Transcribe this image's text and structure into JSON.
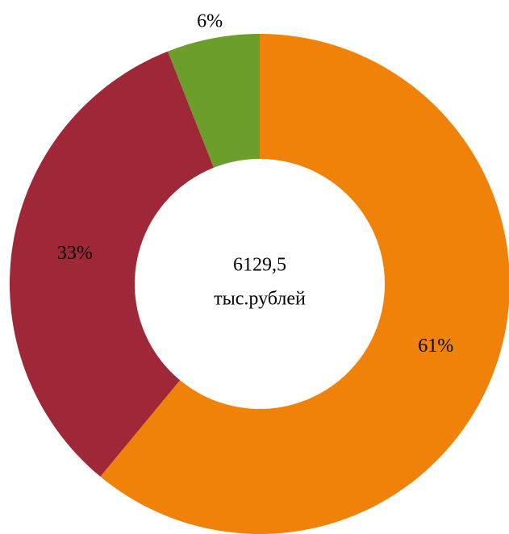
{
  "chart_data": {
    "type": "donut",
    "values": [
      61,
      33,
      6
    ],
    "value_labels": [
      "61%",
      "33%",
      "6%"
    ],
    "colors": [
      "#f0820a",
      "#9e2738",
      "#6b9e2a"
    ],
    "center_lines": [
      "6129,5",
      "тыс.рублей"
    ]
  }
}
